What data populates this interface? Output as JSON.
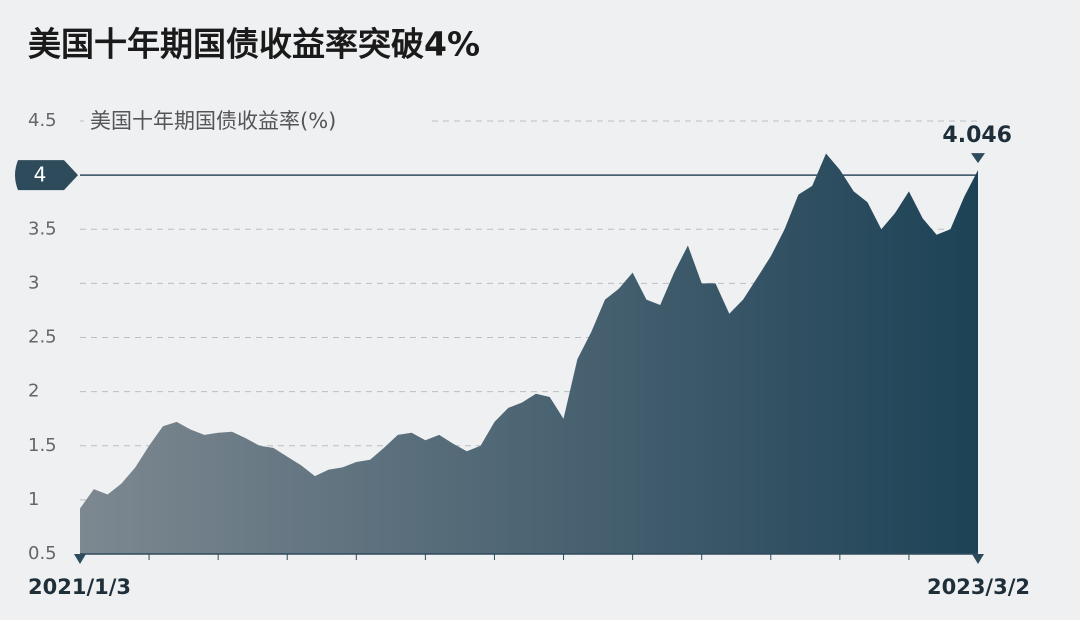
{
  "chart_data": {
    "type": "area",
    "title": "美国十年期国债收益率突破4%",
    "subtitle": "美国十年期国债收益率(%)",
    "categories": [
      "2021/1/3",
      null,
      null,
      null,
      null,
      null,
      null,
      null,
      null,
      null,
      null,
      null,
      null,
      null,
      null,
      null,
      null,
      null,
      null,
      null,
      null,
      null,
      null,
      null,
      null,
      null,
      null,
      null,
      null,
      null,
      null,
      null,
      null,
      null,
      null,
      null,
      null,
      null,
      null,
      null,
      null,
      null,
      null,
      null,
      null,
      null,
      null,
      null,
      null,
      null,
      null,
      null,
      null,
      null,
      null,
      null,
      null,
      null,
      null,
      null,
      null,
      null,
      null,
      null,
      null,
      "2023/3/2"
    ],
    "values": [
      0.92,
      1.1,
      1.05,
      1.15,
      1.3,
      1.5,
      1.68,
      1.72,
      1.65,
      1.6,
      1.62,
      1.63,
      1.57,
      1.5,
      1.48,
      1.4,
      1.32,
      1.22,
      1.28,
      1.3,
      1.35,
      1.37,
      1.48,
      1.6,
      1.62,
      1.55,
      1.6,
      1.52,
      1.45,
      1.5,
      1.72,
      1.85,
      1.9,
      1.98,
      1.95,
      1.75,
      2.3,
      2.55,
      2.85,
      2.95,
      3.1,
      2.85,
      2.8,
      3.1,
      3.35,
      3.0,
      3.0,
      2.72,
      2.85,
      3.05,
      3.25,
      3.5,
      3.82,
      3.9,
      4.2,
      4.05,
      3.85,
      3.75,
      3.5,
      3.65,
      3.85,
      3.6,
      3.45,
      3.5,
      3.8,
      4.046
    ],
    "ylim": [
      0.5,
      4.5
    ],
    "yticks": [
      0.5,
      1,
      1.5,
      2,
      2.5,
      3,
      3.5,
      4,
      4.5
    ],
    "reference_line": 4,
    "grid": true,
    "color_start": "#7d8891",
    "color_end": "#1d4256"
  }
}
